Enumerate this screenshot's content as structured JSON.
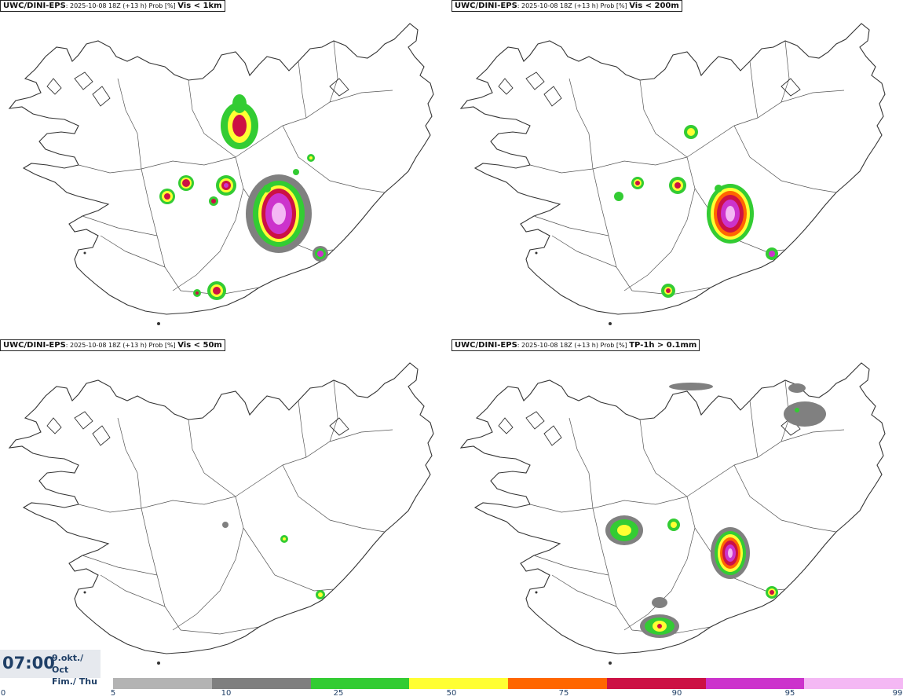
{
  "panels": [
    {
      "model": "UWC/DINI-EPS",
      "meta": ": 2025-10-08 18Z (+13 h) Prob [%] ",
      "field": "Vis < 1km"
    },
    {
      "model": "UWC/DINI-EPS",
      "meta": ": 2025-10-08 18Z (+13 h) Prob [%] ",
      "field": "Vis < 200m"
    },
    {
      "model": "UWC/DINI-EPS",
      "meta": ": 2025-10-08 18Z (+13 h) Prob [%] ",
      "field": "Vis < 50m"
    },
    {
      "model": "UWC/DINI-EPS",
      "meta": ": 2025-10-08 18Z (+13 h) Prob [%] ",
      "field": "TP-1h > 0.1mm"
    }
  ],
  "valid_time": {
    "time": "07:00",
    "date_line1": "9.okt./ Oct",
    "date_line2": "Fim./ Thu"
  },
  "legend": {
    "ticks": [
      "0",
      "5",
      "10",
      "25",
      "50",
      "75",
      "90",
      "95",
      "99"
    ],
    "colors": [
      "#b3b3b3",
      "#7f7f7f",
      "#33cc33",
      "#ffff33",
      "#ff6600",
      "#cc1144",
      "#cc33cc",
      "#f4b8f4"
    ]
  },
  "map_colors": {
    "p5": "#b3b3b3",
    "p10": "#808080",
    "p25": "#33cc33",
    "p50": "#ffff33",
    "p75": "#ff6600",
    "p90": "#cc1144",
    "p95": "#cc33cc",
    "p99": "#f4b8f4",
    "coast": "#333333",
    "region": "#555555"
  }
}
